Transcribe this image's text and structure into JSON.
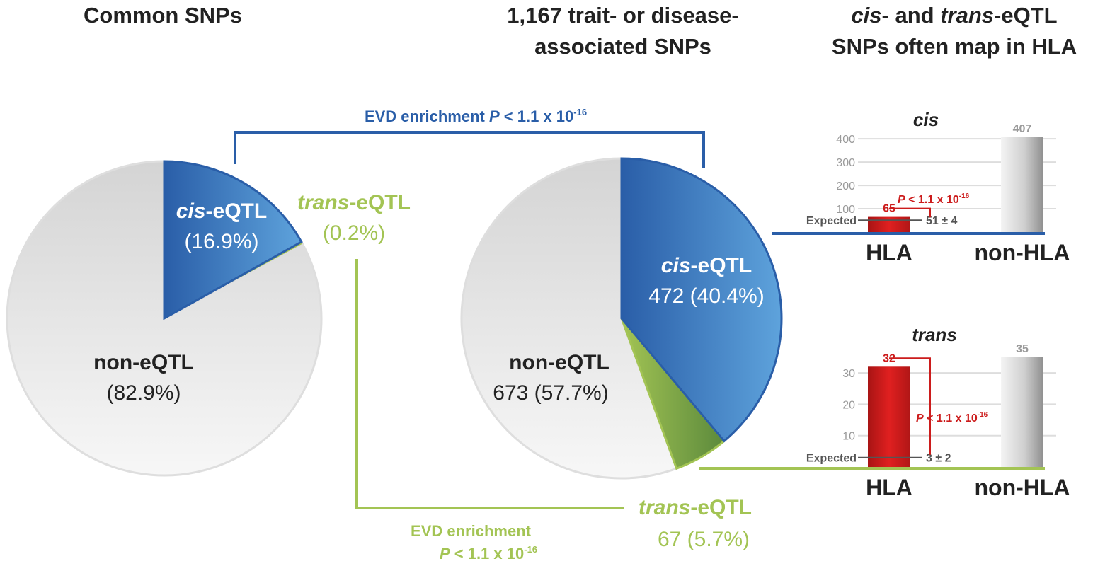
{
  "colors": {
    "cis": "#2a5ea8",
    "cis_light": "#5ea3dc",
    "trans": "#a3c454",
    "trans_dark": "#5c8a3c",
    "non": "#e3e3e3",
    "hla_bar": "#cc1c1c",
    "text_dark": "#222222",
    "axis_grey": "#9a9a9a"
  },
  "panels": {
    "left_title": "Common SNPs",
    "middle_title_line1": "1,167 trait- or disease-",
    "middle_title_line2": "associated SNPs",
    "right_title_line1_italic_a": "cis",
    "right_title_line1_rest_a": "- and ",
    "right_title_line1_italic_b": "trans",
    "right_title_line1_rest_b": "-eQTL",
    "right_title_line2": "SNPs often map in HLA"
  },
  "enrichment": {
    "cis_label_prefix": "EVD enrichment ",
    "cis_label_p": "P",
    "cis_label_suffix": " < 1.1 x 10",
    "cis_label_exp": "-16",
    "trans_label_line1": "EVD enrichment",
    "trans_label_p": "P",
    "trans_label_suffix": " < 1.1 x 10",
    "trans_label_exp": "-16"
  },
  "chart_data": [
    {
      "type": "pie",
      "title": "Common SNPs",
      "slices": [
        {
          "label_italic": "cis",
          "label_rest": "-eQTL",
          "value_text": "(16.9%)",
          "value": 16.9
        },
        {
          "label_italic": "trans",
          "label_rest": "-eQTL",
          "value_text": "(0.2%)",
          "value": 0.2
        },
        {
          "label_italic": "",
          "label_rest": "non-eQTL",
          "value_text": "(82.9%)",
          "value": 82.9
        }
      ]
    },
    {
      "type": "pie",
      "title": "1,167 trait- or disease-associated SNPs",
      "slices": [
        {
          "label_italic": "cis",
          "label_rest": "-eQTL",
          "value_text": "472 (40.4%)",
          "count": 472,
          "value": 40.4
        },
        {
          "label_italic": "trans",
          "label_rest": "-eQTL",
          "value_text": "67 (5.7%)",
          "count": 67,
          "value": 5.7
        },
        {
          "label_italic": "",
          "label_rest": "non-eQTL",
          "value_text": "673 (57.7%)",
          "count": 673,
          "value": 57.7
        }
      ]
    },
    {
      "type": "bar",
      "title": "cis",
      "categories": [
        "HLA",
        "non-HLA"
      ],
      "values": [
        65,
        407
      ],
      "value_labels": [
        "65",
        "407"
      ],
      "yticks": [
        100,
        200,
        300,
        400
      ],
      "ylim": [
        0,
        440
      ],
      "expected_label": "Expected",
      "expected_text": "51 ± 4",
      "expected_value": 51,
      "pvalue_prefix": "P",
      "pvalue_text": " < 1.1 x 10",
      "pvalue_exp": "-16"
    },
    {
      "type": "bar",
      "title": "trans",
      "categories": [
        "HLA",
        "non-HLA"
      ],
      "values": [
        32,
        35
      ],
      "value_labels": [
        "32",
        "35"
      ],
      "yticks": [
        10,
        20,
        30
      ],
      "ylim": [
        0,
        35
      ],
      "expected_label": "Expected",
      "expected_text": "3 ± 2",
      "expected_value": 3,
      "pvalue_prefix": "P",
      "pvalue_text": " < 1.1 x 10",
      "pvalue_exp": "-16"
    }
  ]
}
